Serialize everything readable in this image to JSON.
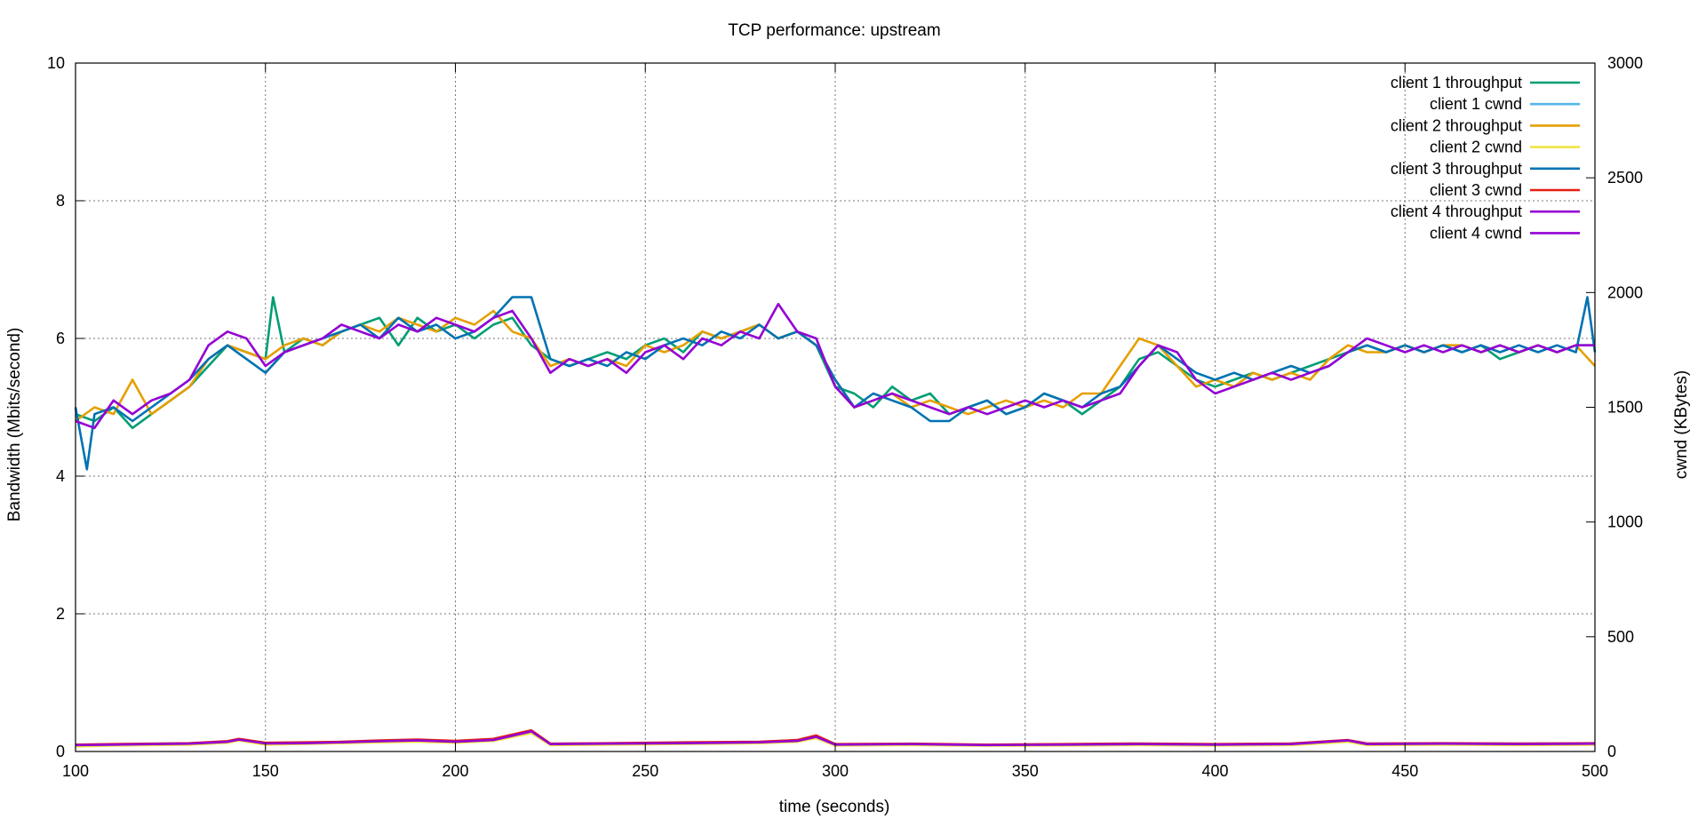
{
  "chart_data": {
    "type": "line",
    "title": "TCP performance: upstream",
    "xlabel": "time (seconds)",
    "ylabel": "Bandwidth (Mbits/second)",
    "y2label": "cwnd (KBytes)",
    "xlim": [
      100,
      500
    ],
    "ylim": [
      0,
      10
    ],
    "y2lim": [
      0,
      3000
    ],
    "xticks": [
      100,
      150,
      200,
      250,
      300,
      350,
      400,
      450,
      500
    ],
    "yticks": [
      0,
      2,
      4,
      6,
      8,
      10
    ],
    "y2ticks": [
      0,
      500,
      1000,
      1500,
      2000,
      2500,
      3000
    ],
    "grid": true,
    "legend_position": "top-right",
    "series": [
      {
        "name": "client 1 throughput",
        "axis": "y1",
        "color": "#009e73",
        "x": [
          100,
          105,
          110,
          115,
          120,
          125,
          130,
          135,
          140,
          145,
          150,
          152,
          155,
          160,
          165,
          170,
          175,
          180,
          185,
          190,
          195,
          200,
          205,
          210,
          215,
          220,
          225,
          230,
          235,
          240,
          245,
          250,
          255,
          260,
          265,
          270,
          275,
          280,
          285,
          290,
          295,
          300,
          305,
          310,
          315,
          320,
          325,
          330,
          335,
          340,
          345,
          350,
          355,
          360,
          365,
          370,
          375,
          380,
          385,
          390,
          395,
          400,
          405,
          410,
          415,
          420,
          425,
          430,
          435,
          440,
          445,
          450,
          455,
          460,
          465,
          470,
          475,
          480,
          485,
          490,
          495,
          500
        ],
        "y": [
          4.9,
          4.8,
          5.0,
          4.7,
          4.9,
          5.1,
          5.3,
          5.6,
          5.9,
          5.8,
          5.7,
          6.6,
          5.8,
          6.0,
          5.9,
          6.1,
          6.2,
          6.3,
          5.9,
          6.3,
          6.1,
          6.2,
          6.0,
          6.2,
          6.3,
          5.9,
          5.7,
          5.6,
          5.7,
          5.8,
          5.7,
          5.9,
          6.0,
          5.8,
          6.1,
          6.0,
          6.1,
          6.2,
          6.0,
          6.1,
          5.9,
          5.3,
          5.2,
          5.0,
          5.3,
          5.1,
          5.2,
          4.9,
          5.0,
          5.1,
          4.9,
          5.0,
          5.2,
          5.1,
          4.9,
          5.1,
          5.3,
          5.7,
          5.8,
          5.6,
          5.4,
          5.3,
          5.4,
          5.5,
          5.4,
          5.5,
          5.6,
          5.7,
          5.8,
          5.9,
          5.8,
          5.9,
          5.8,
          5.9,
          5.8,
          5.9,
          5.7,
          5.8,
          5.9,
          5.8,
          5.9,
          5.9
        ]
      },
      {
        "name": "client 1 cwnd",
        "axis": "y2",
        "color": "#56b4e9",
        "x": [
          100,
          110,
          120,
          130,
          140,
          143,
          150,
          160,
          170,
          180,
          190,
          200,
          210,
          220,
          225,
          240,
          260,
          280,
          290,
          295,
          300,
          320,
          340,
          360,
          380,
          400,
          420,
          435,
          440,
          460,
          480,
          500
        ],
        "y": [
          25,
          28,
          30,
          32,
          40,
          50,
          33,
          35,
          38,
          42,
          45,
          40,
          48,
          82,
          30,
          32,
          35,
          38,
          45,
          60,
          28,
          30,
          27,
          28,
          30,
          28,
          30,
          45,
          30,
          32,
          30,
          32
        ]
      },
      {
        "name": "client 2 throughput",
        "axis": "y1",
        "color": "#e69f00",
        "x": [
          100,
          105,
          110,
          115,
          120,
          125,
          130,
          135,
          140,
          145,
          150,
          155,
          160,
          165,
          170,
          175,
          180,
          185,
          190,
          195,
          200,
          205,
          210,
          215,
          220,
          225,
          230,
          235,
          240,
          245,
          250,
          255,
          260,
          265,
          270,
          275,
          280,
          285,
          290,
          295,
          300,
          305,
          310,
          315,
          320,
          325,
          330,
          335,
          340,
          345,
          350,
          355,
          360,
          365,
          370,
          375,
          380,
          385,
          390,
          395,
          400,
          405,
          410,
          415,
          420,
          425,
          430,
          435,
          440,
          445,
          450,
          455,
          460,
          465,
          470,
          475,
          480,
          485,
          490,
          495,
          500
        ],
        "y": [
          4.8,
          5.0,
          4.9,
          5.4,
          4.9,
          5.1,
          5.3,
          5.7,
          5.9,
          5.8,
          5.7,
          5.9,
          6.0,
          5.9,
          6.1,
          6.2,
          6.1,
          6.3,
          6.2,
          6.1,
          6.3,
          6.2,
          6.4,
          6.1,
          6.0,
          5.6,
          5.7,
          5.6,
          5.7,
          5.6,
          5.9,
          5.8,
          5.9,
          6.1,
          6.0,
          6.1,
          6.2,
          6.0,
          6.1,
          5.9,
          5.4,
          5.0,
          5.1,
          5.2,
          5.0,
          5.1,
          5.0,
          4.9,
          5.0,
          5.1,
          5.0,
          5.1,
          5.0,
          5.2,
          5.2,
          5.6,
          6.0,
          5.9,
          5.6,
          5.3,
          5.4,
          5.3,
          5.5,
          5.4,
          5.5,
          5.4,
          5.7,
          5.9,
          5.8,
          5.8,
          5.9,
          5.8,
          5.9,
          5.9,
          5.8,
          5.9,
          5.8,
          5.9,
          5.8,
          5.9,
          5.6
        ]
      },
      {
        "name": "client 2 cwnd",
        "axis": "y2",
        "color": "#f0e442",
        "x": [
          100,
          110,
          120,
          130,
          140,
          143,
          150,
          160,
          170,
          180,
          190,
          200,
          210,
          220,
          225,
          240,
          260,
          280,
          290,
          295,
          300,
          320,
          340,
          360,
          380,
          400,
          420,
          435,
          440,
          460,
          480,
          500
        ],
        "y": [
          22,
          26,
          28,
          30,
          38,
          48,
          30,
          33,
          36,
          40,
          43,
          38,
          46,
          80,
          28,
          30,
          33,
          36,
          42,
          58,
          26,
          28,
          25,
          26,
          28,
          26,
          28,
          42,
          28,
          30,
          28,
          30
        ]
      },
      {
        "name": "client 3 throughput",
        "axis": "y1",
        "color": "#0072b2",
        "x": [
          100,
          103,
          105,
          110,
          115,
          120,
          125,
          130,
          135,
          140,
          145,
          150,
          155,
          160,
          165,
          170,
          175,
          180,
          185,
          190,
          195,
          200,
          205,
          210,
          215,
          220,
          225,
          230,
          235,
          240,
          245,
          250,
          255,
          260,
          265,
          270,
          275,
          280,
          285,
          290,
          295,
          300,
          305,
          310,
          315,
          320,
          325,
          330,
          335,
          340,
          345,
          350,
          355,
          360,
          365,
          370,
          375,
          380,
          385,
          390,
          395,
          400,
          405,
          410,
          415,
          420,
          425,
          430,
          435,
          440,
          445,
          450,
          455,
          460,
          465,
          470,
          475,
          480,
          485,
          490,
          495,
          498,
          500
        ],
        "y": [
          5.0,
          4.1,
          4.9,
          5.0,
          4.8,
          5.0,
          5.2,
          5.4,
          5.7,
          5.9,
          5.7,
          5.5,
          5.8,
          5.9,
          6.0,
          6.1,
          6.2,
          6.0,
          6.3,
          6.1,
          6.2,
          6.0,
          6.1,
          6.3,
          6.6,
          6.6,
          5.7,
          5.6,
          5.7,
          5.6,
          5.8,
          5.7,
          5.9,
          6.0,
          5.9,
          6.1,
          6.0,
          6.2,
          6.0,
          6.1,
          5.9,
          5.4,
          5.0,
          5.2,
          5.1,
          5.0,
          4.8,
          4.8,
          5.0,
          5.1,
          4.9,
          5.0,
          5.2,
          5.1,
          5.0,
          5.2,
          5.3,
          5.6,
          5.9,
          5.7,
          5.5,
          5.4,
          5.5,
          5.4,
          5.5,
          5.6,
          5.5,
          5.6,
          5.8,
          5.9,
          5.8,
          5.9,
          5.8,
          5.9,
          5.8,
          5.9,
          5.8,
          5.9,
          5.8,
          5.9,
          5.8,
          6.6,
          5.8
        ]
      },
      {
        "name": "client 3 cwnd",
        "axis": "y2",
        "color": "#e51e10",
        "x": [
          100,
          110,
          120,
          130,
          140,
          143,
          150,
          160,
          170,
          180,
          190,
          200,
          210,
          220,
          225,
          240,
          260,
          280,
          290,
          295,
          300,
          320,
          340,
          360,
          380,
          400,
          420,
          435,
          440,
          460,
          480,
          500
        ],
        "y": [
          30,
          32,
          34,
          36,
          45,
          55,
          38,
          40,
          42,
          48,
          52,
          46,
          55,
          92,
          34,
          36,
          40,
          42,
          50,
          70,
          32,
          34,
          30,
          32,
          35,
          32,
          35,
          50,
          35,
          36,
          35,
          36
        ]
      },
      {
        "name": "client 4 throughput",
        "axis": "y1",
        "color": "#9400d3",
        "x": [
          100,
          105,
          110,
          115,
          120,
          125,
          130,
          135,
          140,
          145,
          150,
          155,
          160,
          165,
          170,
          175,
          180,
          185,
          190,
          195,
          200,
          205,
          210,
          215,
          220,
          225,
          230,
          235,
          240,
          245,
          250,
          255,
          260,
          265,
          270,
          275,
          280,
          285,
          290,
          295,
          300,
          305,
          310,
          315,
          320,
          325,
          330,
          335,
          340,
          345,
          350,
          355,
          360,
          365,
          370,
          375,
          380,
          385,
          390,
          395,
          400,
          405,
          410,
          415,
          420,
          425,
          430,
          435,
          440,
          445,
          450,
          455,
          460,
          465,
          470,
          475,
          480,
          485,
          490,
          495,
          500
        ],
        "y": [
          4.8,
          4.7,
          5.1,
          4.9,
          5.1,
          5.2,
          5.4,
          5.9,
          6.1,
          6.0,
          5.6,
          5.8,
          5.9,
          6.0,
          6.2,
          6.1,
          6.0,
          6.2,
          6.1,
          6.3,
          6.2,
          6.1,
          6.3,
          6.4,
          6.0,
          5.5,
          5.7,
          5.6,
          5.7,
          5.5,
          5.8,
          5.9,
          5.7,
          6.0,
          5.9,
          6.1,
          6.0,
          6.5,
          6.1,
          6.0,
          5.3,
          5.0,
          5.1,
          5.2,
          5.1,
          5.0,
          4.9,
          5.0,
          4.9,
          5.0,
          5.1,
          5.0,
          5.1,
          5.0,
          5.1,
          5.2,
          5.6,
          5.9,
          5.8,
          5.4,
          5.2,
          5.3,
          5.4,
          5.5,
          5.4,
          5.5,
          5.6,
          5.8,
          6.0,
          5.9,
          5.8,
          5.9,
          5.8,
          5.9,
          5.8,
          5.9,
          5.8,
          5.9,
          5.8,
          5.9,
          5.9
        ]
      },
      {
        "name": "client 4 cwnd",
        "axis": "y2",
        "color": "#9400d3",
        "x": [
          100,
          110,
          120,
          130,
          140,
          143,
          150,
          160,
          170,
          180,
          190,
          200,
          210,
          220,
          225,
          240,
          260,
          280,
          290,
          295,
          300,
          320,
          340,
          360,
          380,
          400,
          420,
          435,
          440,
          460,
          480,
          500
        ],
        "y": [
          28,
          30,
          32,
          34,
          42,
          52,
          35,
          36,
          40,
          45,
          48,
          42,
          50,
          88,
          32,
          34,
          36,
          40,
          46,
          64,
          30,
          32,
          28,
          30,
          32,
          30,
          32,
          48,
          32,
          34,
          32,
          34
        ]
      }
    ]
  }
}
